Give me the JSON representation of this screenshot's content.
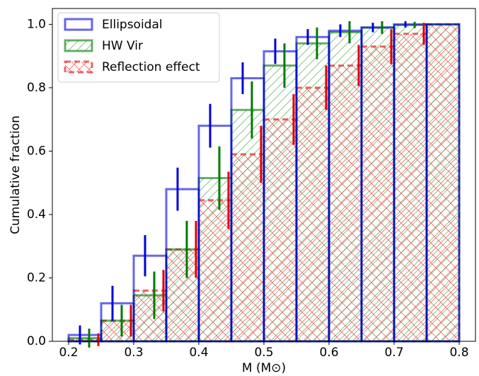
{
  "chart_data": {
    "type": "step_histogram",
    "xlabel": "M (M⊙)",
    "ylabel": "Cumulative fraction",
    "bins": [
      0.2,
      0.25,
      0.3,
      0.35,
      0.4,
      0.45,
      0.5,
      0.55,
      0.6,
      0.65,
      0.7,
      0.75,
      0.8
    ],
    "xlim": [
      0.175,
      0.825
    ],
    "ylim": [
      0,
      1.05
    ],
    "xticks": [
      0.2,
      0.3,
      0.4,
      0.5,
      0.6,
      0.7,
      0.8
    ],
    "yticks": [
      {
        "value": 0,
        "label": "0.0"
      },
      0.2,
      0.4,
      0.6,
      0.8,
      {
        "value": 1,
        "label": "1.0"
      }
    ],
    "legend": "upper left",
    "series": [
      {
        "name": "Ellipsoidal",
        "color": "#0000dd",
        "style": "outline",
        "values": [
          0.02,
          0.12,
          0.27,
          0.48,
          0.68,
          0.83,
          0.915,
          0.96,
          0.98,
          0.99,
          1.0,
          1.0
        ],
        "errors": [
          0.03,
          0.055,
          0.065,
          0.068,
          0.069,
          0.05,
          0.04,
          0.025,
          0.02,
          0.015,
          0.01,
          0
        ]
      },
      {
        "name": "HW Vir",
        "color": "#007a00",
        "style": "diagonal",
        "values": [
          0.01,
          0.065,
          0.145,
          0.29,
          0.515,
          0.73,
          0.87,
          0.94,
          0.975,
          0.99,
          0.998,
          1.0
        ],
        "errors": [
          0.03,
          0.05,
          0.075,
          0.09,
          0.1,
          0.09,
          0.07,
          0.05,
          0.035,
          0.02,
          0.01,
          0
        ]
      },
      {
        "name": "Reflection effect",
        "color": "#e00000",
        "style": "cross",
        "values": [
          0.005,
          0.065,
          0.16,
          0.29,
          0.445,
          0.59,
          0.7,
          0.8,
          0.87,
          0.93,
          0.97,
          1.0
        ],
        "errors": [
          0.02,
          0.05,
          0.065,
          0.09,
          0.09,
          0.09,
          0.08,
          0.07,
          0.065,
          0.055,
          0.035,
          0
        ]
      }
    ]
  }
}
